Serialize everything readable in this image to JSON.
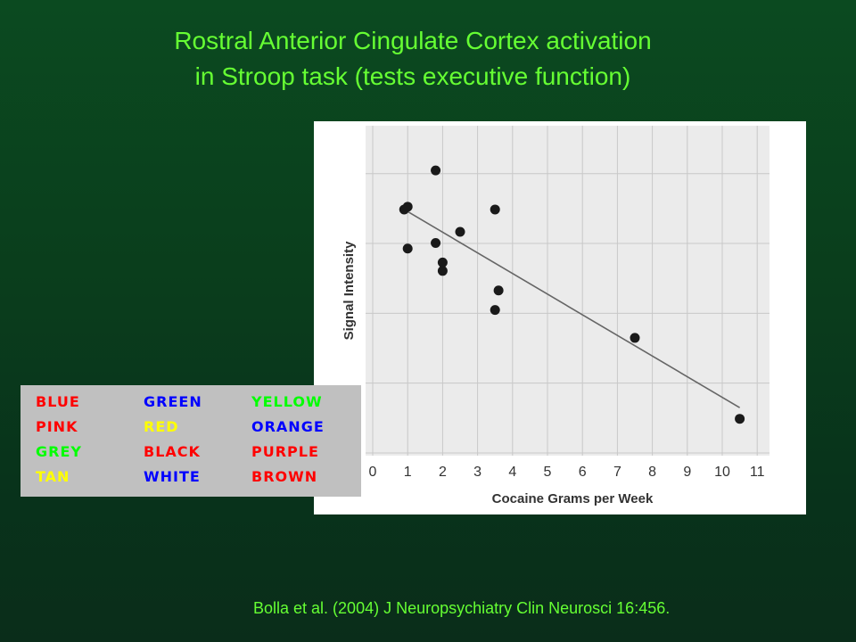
{
  "slide": {
    "title_line1": "Rostral Anterior Cingulate Cortex activation",
    "title_line2": "in Stroop task (tests executive function)",
    "citation": "Bolla et al. (2004)  J Neuropsychiatry Clin Neurosci 16:456."
  },
  "colors": {
    "title_text": "#66ff33",
    "background_top": "#0b4a20",
    "background_bottom": "#0a2d1a",
    "point_color": "#1a1a1a",
    "fit_line_color": "#666666",
    "grid_color": "#c8c8c8",
    "chart_bg": "#ebebeb",
    "stroop_bg": "#c0c0c0"
  },
  "stroop": {
    "words": [
      {
        "text": "BLUE",
        "color": "#ff0000"
      },
      {
        "text": "GREEN",
        "color": "#0000ff"
      },
      {
        "text": "YELLOW",
        "color": "#00ff00"
      },
      {
        "text": "PINK",
        "color": "#ff0000"
      },
      {
        "text": "RED",
        "color": "#ffff00"
      },
      {
        "text": "ORANGE",
        "color": "#0000ff"
      },
      {
        "text": "GREY",
        "color": "#00ff00"
      },
      {
        "text": "BLACK",
        "color": "#ff0000"
      },
      {
        "text": "PURPLE",
        "color": "#ff0000"
      },
      {
        "text": "TAN",
        "color": "#ffff00"
      },
      {
        "text": "WHITE",
        "color": "#0000ff"
      },
      {
        "text": "BROWN",
        "color": "#ff0000"
      }
    ]
  },
  "chart_data": {
    "type": "scatter",
    "title": "",
    "xlabel": "Cocaine Grams per Week",
    "ylabel": "Signal Intensity",
    "x_ticks": [
      "0",
      "1",
      "2",
      "3",
      "4",
      "5",
      "6",
      "7",
      "8",
      "9",
      "10",
      "11"
    ],
    "xlim": [
      0,
      11
    ],
    "ylim": [
      0,
      1
    ],
    "y_tick_labels_shown": false,
    "grid": true,
    "legend": "none",
    "series": [
      {
        "points": [
          {
            "x": 0.9,
            "y": 0.85
          },
          {
            "x": 1.0,
            "y": 0.86
          },
          {
            "x": 1.0,
            "y": 0.71
          },
          {
            "x": 1.8,
            "y": 0.99
          },
          {
            "x": 1.8,
            "y": 0.73
          },
          {
            "x": 2.0,
            "y": 0.66
          },
          {
            "x": 2.0,
            "y": 0.63
          },
          {
            "x": 2.5,
            "y": 0.77
          },
          {
            "x": 3.5,
            "y": 0.85
          },
          {
            "x": 3.6,
            "y": 0.56
          },
          {
            "x": 3.5,
            "y": 0.49
          },
          {
            "x": 7.5,
            "y": 0.39
          },
          {
            "x": 10.5,
            "y": 0.1
          }
        ]
      }
    ],
    "fit_line": {
      "x1": 0.9,
      "y1": 0.85,
      "x2": 10.5,
      "y2": 0.14
    }
  }
}
